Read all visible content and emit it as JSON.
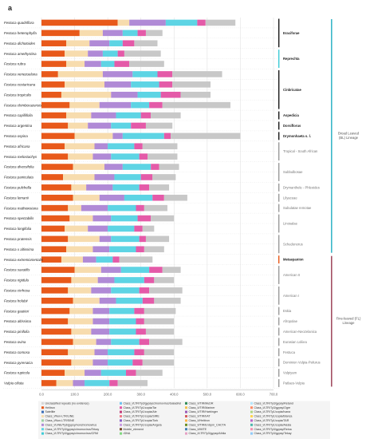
{
  "panel_label": "a",
  "chart_data": {
    "type": "bar",
    "stacked": true,
    "orientation": "horizontal",
    "title": "",
    "xlabel": "",
    "ylabel": "",
    "xlim": [
      0,
      700
    ],
    "x_ticks": [
      "0.0",
      "100.0",
      "200.0",
      "300.0",
      "400.0",
      "500.0",
      "600.0",
      "700.0"
    ],
    "x_tick_values": [
      0,
      100,
      200,
      300,
      400,
      500,
      600,
      700
    ],
    "grid": "vertical",
    "categories": [
      "Festuca quadriflora",
      "Festuca heterophylla",
      "Festuca dichotoides",
      "Festuca amethystina",
      "Festuca rubra",
      "Festuca venezuelana",
      "Festuca costaricana",
      "Festuca tropicalis",
      "Festuca chimborazensis",
      "Festuca capillifolia",
      "Festuca argentina",
      "Festuca ospina",
      "Festuca africana",
      "Festuca melostachys",
      "Festuca diversifolia",
      "Festuca paniculata",
      "Festuca pulchella",
      "Festuca lemanii",
      "Festuca mathewsiana",
      "Festuca spectabilis",
      "Festuca longifolia",
      "Festuca pratensis",
      "Festuca x altissima",
      "Festuca extremiorientalis",
      "Festuca saxatilis",
      "Festuca rigidula",
      "Festuca cirrhosa",
      "Festuca holubii",
      "Festuca gautieri",
      "Festuca altissima",
      "Festuca pinifolia",
      "Festuca ovina",
      "Festuca comosa",
      "Festuca pyrenaica",
      "Festuca rupicola",
      "Vulpia ciliata"
    ],
    "colors": [
      "#e8591a",
      "#f7dcae",
      "#b08ad6",
      "#5dd4e4",
      "#e45aa8",
      "#c8c8c8"
    ],
    "series": [
      {
        "values": [
          230,
          115,
          75,
          70,
          75,
          50,
          70,
          60,
          85,
          75,
          80,
          100,
          70,
          80,
          95,
          65,
          90,
          95,
          80,
          85,
          70,
          80,
          75,
          60,
          100,
          90,
          80,
          95,
          85,
          80,
          90,
          95,
          80,
          90,
          70,
          45
        ]
      },
      {
        "values": [
          35,
          70,
          70,
          70,
          55,
          135,
          120,
          150,
          90,
          75,
          60,
          115,
          90,
          75,
          95,
          95,
          45,
          80,
          40,
          70,
          70,
          95,
          80,
          65,
          80,
          80,
          70,
          80,
          70,
          75,
          60,
          70,
          80,
          65,
          60,
          50
        ]
      },
      {
        "values": [
          110,
          60,
          60,
          45,
          50,
          90,
          80,
          80,
          95,
          75,
          70,
          30,
          40,
          55,
          55,
          60,
          80,
          75,
          80,
          55,
          60,
          35,
          50,
          40,
          60,
          50,
          60,
          50,
          50,
          50,
          55,
          45,
          40,
          45,
          50,
          35
        ]
      },
      {
        "values": [
          95,
          45,
          40,
          45,
          40,
          75,
          85,
          70,
          55,
          75,
          60,
          125,
          80,
          85,
          85,
          80,
          80,
          85,
          85,
          80,
          80,
          85,
          80,
          50,
          85,
          90,
          85,
          80,
          75,
          80,
          80,
          85,
          80,
          75,
          75,
          75
        ]
      },
      {
        "values": [
          25,
          25,
          35,
          20,
          45,
          45,
          40,
          60,
          40,
          30,
          45,
          20,
          25,
          25,
          25,
          35,
          30,
          35,
          25,
          40,
          25,
          20,
          25,
          20,
          40,
          30,
          30,
          35,
          30,
          25,
          30,
          30,
          30,
          30,
          30,
          25
        ]
      },
      {
        "values": [
          90,
          50,
          70,
          110,
          105,
          150,
          115,
          90,
          205,
          90,
          80,
          210,
          105,
          90,
          60,
          70,
          60,
          70,
          70,
          70,
          35,
          70,
          60,
          100,
          55,
          60,
          100,
          80,
          95,
          90,
          85,
          100,
          90,
          95,
          80,
          90
        ]
      }
    ],
    "groups": [
      {
        "name": "Eraciforae",
        "color": "#1a1a1a",
        "from": 0,
        "to": 2
      },
      {
        "name": "Reprechta",
        "color": "#3dcbd6",
        "from": 3,
        "to": 4
      },
      {
        "name": "Cinbricatae",
        "color": "#1a1a1a",
        "from": 5,
        "to": 8
      },
      {
        "name": "Aspedicia",
        "color": "#1a1a1a",
        "from": 9,
        "to": 9
      },
      {
        "name": "Dorsiflorus",
        "color": "#1a1a1a",
        "from": 10,
        "to": 10
      },
      {
        "name": "Drymonhaeta s. l.",
        "color": "#1a1a1a",
        "from": 11,
        "to": 11
      },
      {
        "name": "Tropical - South African",
        "color": "#9a9a9a",
        "from": 12,
        "to": 13
      },
      {
        "name": "Subbulbosae",
        "color": "#9a9a9a",
        "from": 14,
        "to": 15
      },
      {
        "name": "Drymanthele - Phleoides",
        "color": "#9a9a9a",
        "from": 16,
        "to": 16
      },
      {
        "name": "Lilyaceae",
        "color": "#9a9a9a",
        "from": 17,
        "to": 17
      },
      {
        "name": "Subulatae remotae",
        "color": "#9a9a9a",
        "from": 18,
        "to": 18
      },
      {
        "name": "Linosalae",
        "color": "#9a9a9a",
        "from": 19,
        "to": 20
      },
      {
        "name": "Schedonorus",
        "color": "#9a9a9a",
        "from": 21,
        "to": 22
      },
      {
        "name": "Metaepanion",
        "color": "#e8591a",
        "from": 23,
        "to": 23
      },
      {
        "name": "American II",
        "color": "#9a9a9a",
        "from": 24,
        "to": 25
      },
      {
        "name": "American I",
        "color": "#9a9a9a",
        "from": 26,
        "to": 27
      },
      {
        "name": "Eskia",
        "color": "#9a9a9a",
        "from": 28,
        "to": 28
      },
      {
        "name": "Afropolae",
        "color": "#9a9a9a",
        "from": 29,
        "to": 29
      },
      {
        "name": "American-Neozelanica",
        "color": "#9a9a9a",
        "from": 30,
        "to": 30
      },
      {
        "name": "Eurasian Loliiea",
        "color": "#9a9a9a",
        "from": 31,
        "to": 31
      },
      {
        "name": "Festuca",
        "color": "#9a9a9a",
        "from": 32,
        "to": 32
      },
      {
        "name": "Dominion Vulpia-Psilurus",
        "color": "#9a9a9a",
        "from": 33,
        "to": 33
      },
      {
        "name": "Vulpiyam",
        "color": "#9a9a9a",
        "from": 34,
        "to": 34
      },
      {
        "name": "Patlaes-Vulpia",
        "color": "#9a9a9a",
        "from": 35,
        "to": 35
      }
    ],
    "lineages": [
      {
        "name": "Broad Leaved (BL) Lineage",
        "color": "#3ab7c9",
        "from": 0,
        "to": 22
      },
      {
        "name": "Fine-leaved (FL) Lineage",
        "color": "#a35063",
        "from": 23,
        "to": 35
      }
    ],
    "legend": {
      "placement": "bottom",
      "items": [
        {
          "label": "Unclassified repeats (no evidence)",
          "color": "#d6d6d6"
        },
        {
          "label": "Helitron",
          "color": "#e8591a"
        },
        {
          "label": "Satellite",
          "color": "#3a6db6"
        },
        {
          "label": "Class_I/Non-LTR/LINE",
          "color": "#f7dcae"
        },
        {
          "label": "Class_I/Non-LTR/SINE",
          "color": "#9ad0a2"
        },
        {
          "label": "Class_I/LINE/Ty3/gypsy/nonchromovirus",
          "color": "#b08ad6"
        },
        {
          "label": "Class_I/LTR/Ty3/gypsy/chromovirus/Tekay",
          "color": "#5dd4e4"
        },
        {
          "label": "Class_I/LTR/Ty3/gypsy/chromovirus/CRM",
          "color": "#3dcbd6"
        },
        {
          "label": "Class_I/LTR/Ty3/gypsy/chromovirus/Galadriel",
          "color": "#6ec1f0"
        },
        {
          "label": "Class_I/LTR/Ty1/copia/Tar",
          "color": "#e45aa8"
        },
        {
          "label": "Class_I/LTR/Ty1/copia/Ale",
          "color": "#c23b7a"
        },
        {
          "label": "Class_I/LTR/Ty1/copia/SIRE",
          "color": "#f07a8a"
        },
        {
          "label": "Class_I/LTR/Ty1/copia/Tork",
          "color": "#8a5ec7"
        },
        {
          "label": "Class_I/LTR/Ty1/copia/Angela",
          "color": "#c99ae0"
        },
        {
          "label": "Mobile_element",
          "color": "#7a4a2a"
        },
        {
          "label": "rDNA",
          "color": "#7fd87f"
        },
        {
          "label": "Class_II/TIR/MuDR",
          "color": "#2e8b57"
        },
        {
          "label": "Class_II/TIR/Mariner",
          "color": "#f2c14e"
        },
        {
          "label": "Class_II/TIR/Harbinger",
          "color": "#9b59b6"
        },
        {
          "label": "Class_II/TIR/hAT",
          "color": "#d65f5f"
        },
        {
          "label": "Class_II/Helitron",
          "color": "#ffb347"
        },
        {
          "label": "Class_II/TIR/EnSpm_CACTA",
          "color": "#6b8e23"
        },
        {
          "label": "Class_II/MITE",
          "color": "#4682b4"
        },
        {
          "label": "Class_I/LTR/Ty3/gypsy/Athila",
          "color": "#e6a0c4"
        },
        {
          "label": "Class_I/LTR/Ty3/gypsy/Retand",
          "color": "#b3e5fc"
        },
        {
          "label": "Class_I/LTR/Ty3/gypsy/Ogre",
          "color": "#ff8a65"
        },
        {
          "label": "Class_I/LTR/Ty1/copia/Ivana",
          "color": "#aed581"
        },
        {
          "label": "Class_I/LTR/Ty1/copia/Bianca",
          "color": "#ffd54f"
        },
        {
          "label": "Class_I/LTR/Ty1/copia/TAR",
          "color": "#ba68c8"
        },
        {
          "label": "Class_I/LTR/Ty1/copia/Alesia",
          "color": "#4db6ac"
        },
        {
          "label": "Class_I/LTR/Ty3/gypsy/Reina",
          "color": "#f48fb1"
        },
        {
          "label": "Class_I/LTR/Ty3/gypsy/Tekay",
          "color": "#90caf9"
        }
      ]
    }
  }
}
